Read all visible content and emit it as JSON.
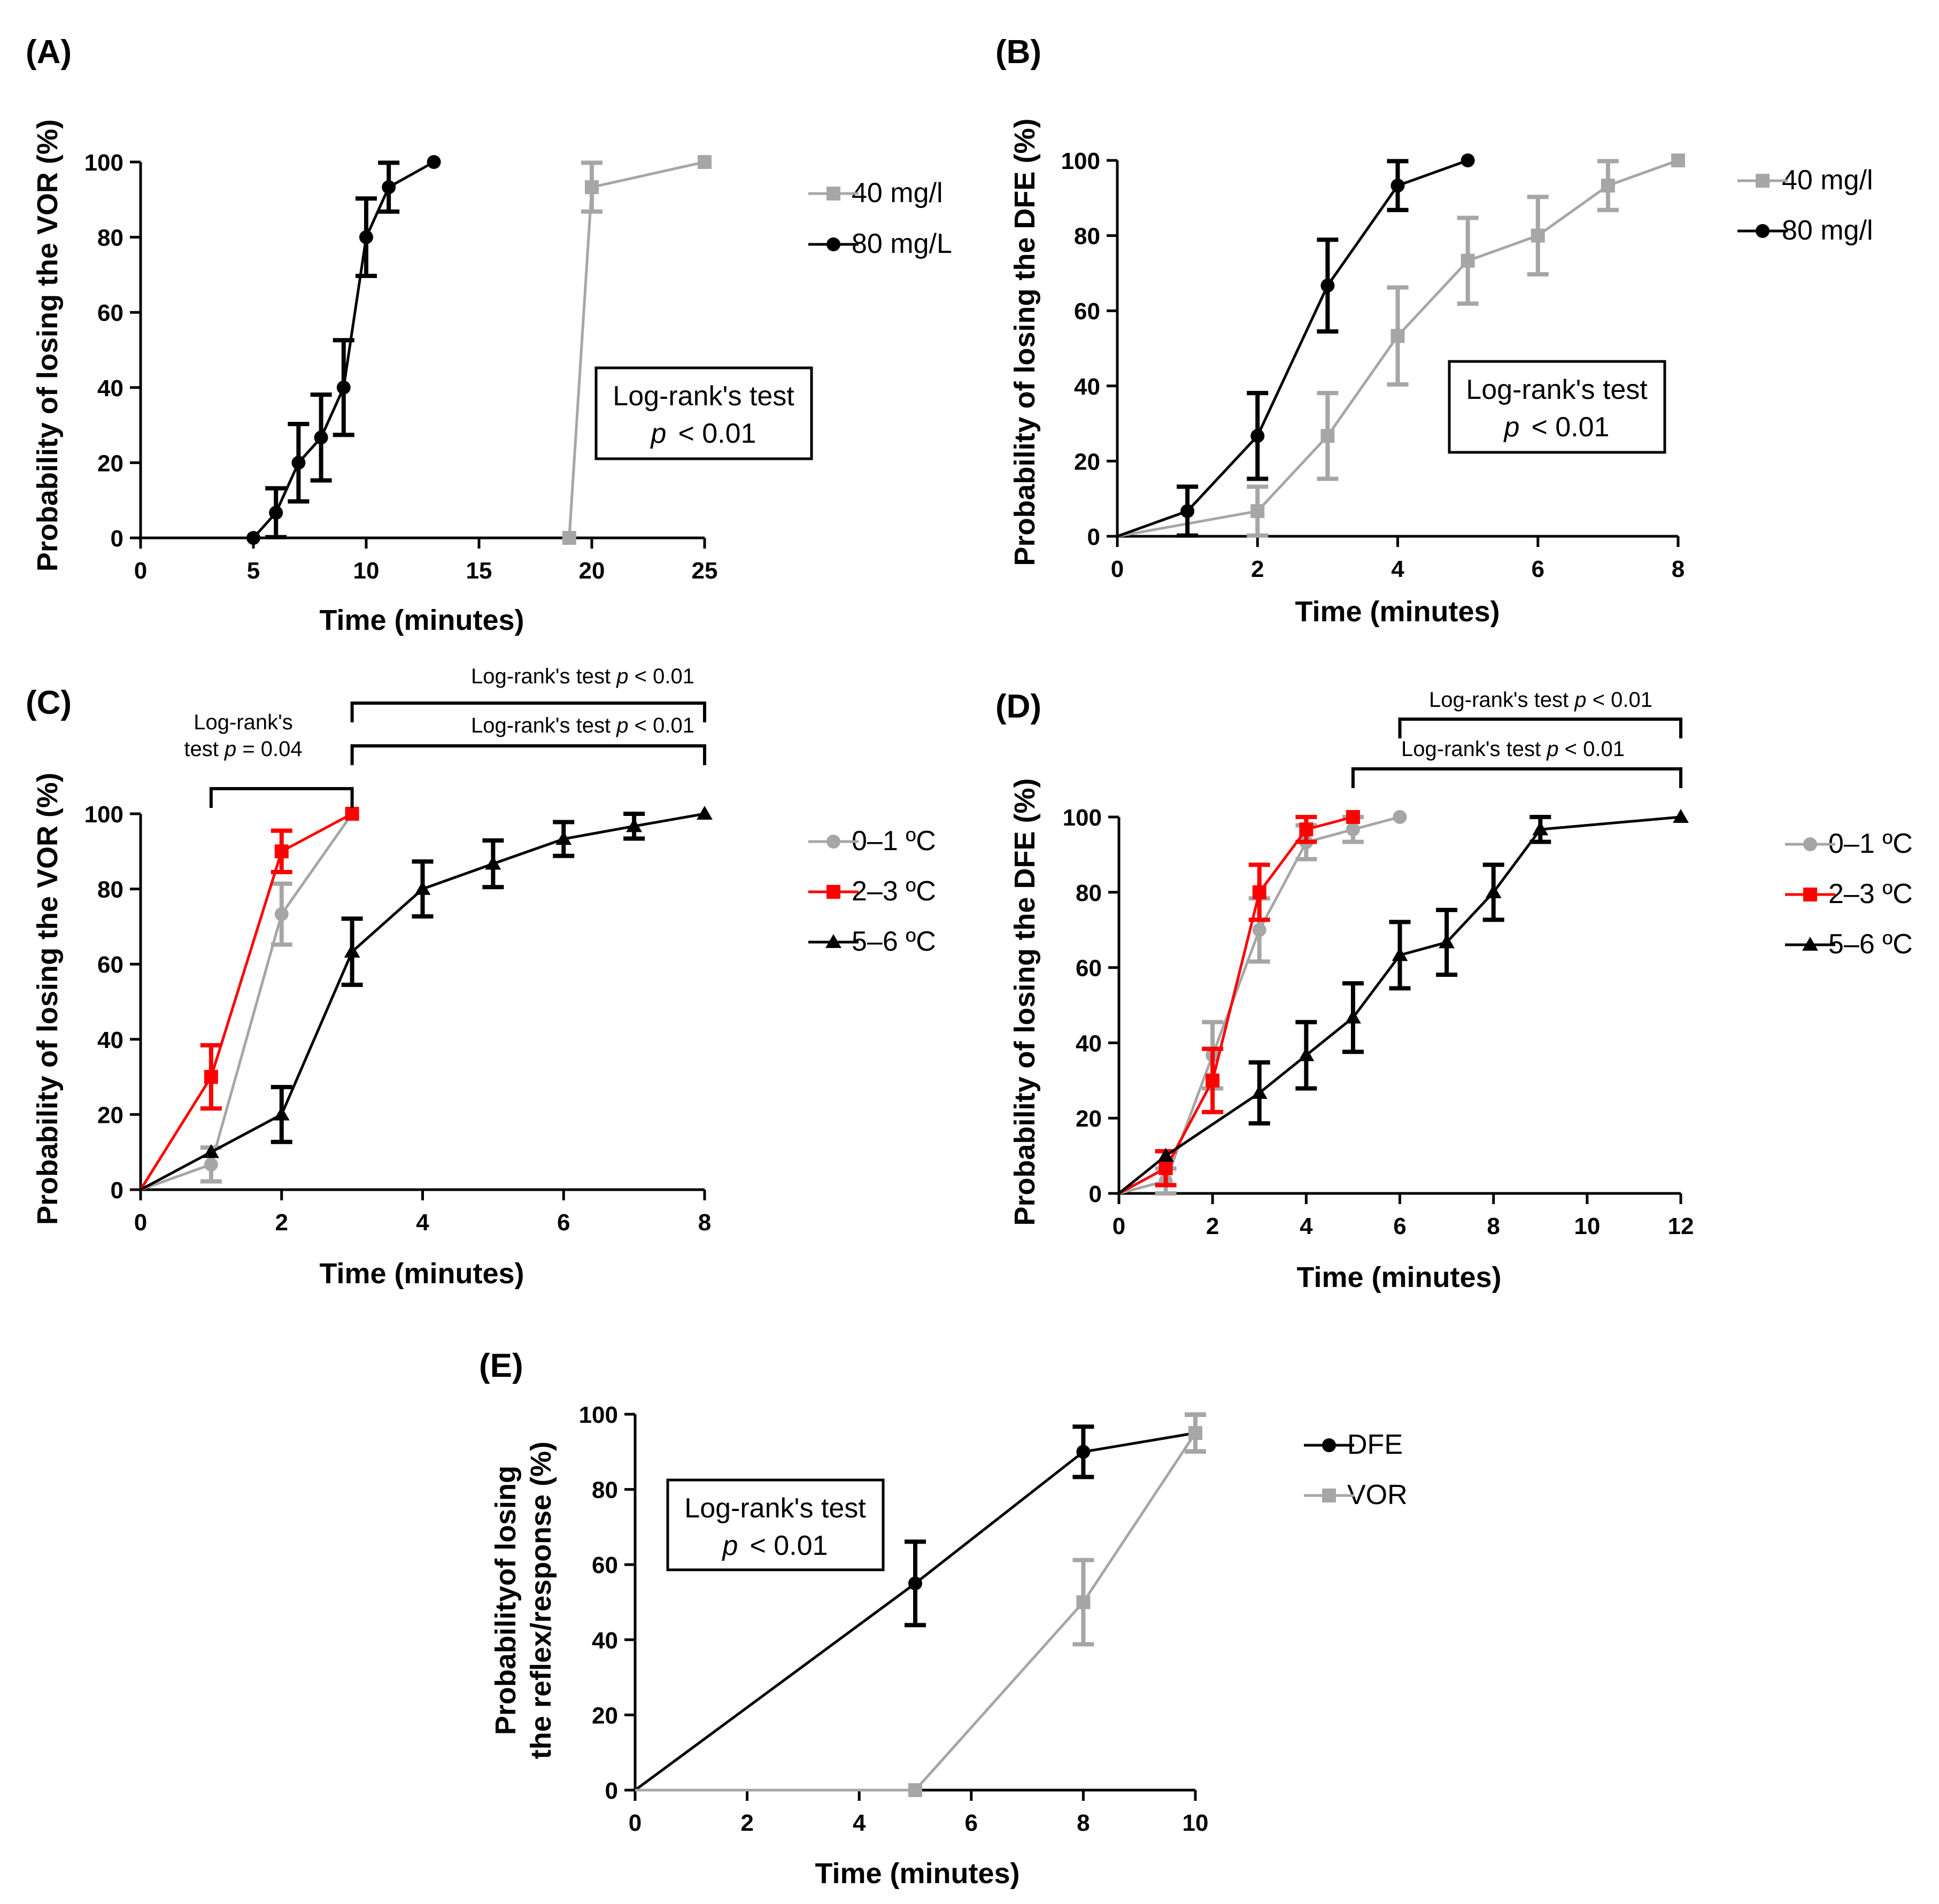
{
  "figure": {
    "panels": [
      {
        "letter": "(A)"
      },
      {
        "letter": "(B)"
      },
      {
        "letter": "(C)"
      },
      {
        "letter": "(D)"
      },
      {
        "letter": "(E)"
      }
    ]
  },
  "colors": {
    "black": "#000000",
    "gray": "#a6a6a6",
    "red": "#ff0000"
  },
  "chart_data": [
    {
      "type": "line",
      "panel": "(A)",
      "xlabel": "Time (minutes)",
      "ylabel": "Probability of losing the VOR (%)",
      "xlim": [
        0,
        25
      ],
      "ylim": [
        0,
        100
      ],
      "xticks": [
        0,
        5,
        10,
        15,
        20,
        25
      ],
      "yticks": [
        0,
        20,
        40,
        60,
        80,
        100
      ],
      "legend_position": "top-right, outside plot",
      "series": [
        {
          "name": "40 mg/l",
          "color": "#a6a6a6",
          "marker": "square",
          "x": [
            19,
            20,
            25
          ],
          "y": [
            0,
            93.3,
            100
          ],
          "err": [
            0,
            6.5,
            0
          ]
        },
        {
          "name": "80 mg/L",
          "color": "#000000",
          "marker": "circle",
          "x": [
            5,
            6,
            7,
            8,
            9,
            10,
            11,
            13
          ],
          "y": [
            0,
            6.7,
            20,
            26.7,
            40,
            80,
            93.3,
            100
          ],
          "err": [
            0,
            6.5,
            10.3,
            11.4,
            12.6,
            10.3,
            6.5,
            0
          ]
        }
      ],
      "annotation": {
        "line1": "Log-rank's test",
        "p_symbol": "p",
        "p_value": "< 0.01"
      }
    },
    {
      "type": "line",
      "panel": "(B)",
      "xlabel": "Time (minutes)",
      "ylabel": "Probability of losing the DFE (%)",
      "xlim": [
        0,
        8
      ],
      "ylim": [
        0,
        100
      ],
      "xticks": [
        0,
        2,
        4,
        6,
        8
      ],
      "yticks": [
        0,
        20,
        40,
        60,
        80,
        100
      ],
      "legend_position": "top-right, outside plot",
      "series": [
        {
          "name": "40 mg/l",
          "color": "#a6a6a6",
          "marker": "square",
          "x": [
            0,
            2,
            3,
            4,
            5,
            6,
            7,
            8
          ],
          "y": [
            0,
            6.7,
            26.7,
            53.3,
            73.3,
            80,
            93.3,
            100
          ],
          "err": [
            0,
            6.5,
            11.4,
            12.9,
            11.4,
            10.3,
            6.5,
            0
          ]
        },
        {
          "name": "80 mg/l",
          "color": "#000000",
          "marker": "circle",
          "x": [
            0,
            1,
            2,
            3,
            4,
            5
          ],
          "y": [
            0,
            6.7,
            26.7,
            66.7,
            93.3,
            100
          ],
          "err": [
            0,
            6.5,
            11.4,
            12.2,
            6.5,
            0
          ]
        }
      ],
      "annotation": {
        "line1": "Log-rank's test",
        "p_symbol": "p",
        "p_value": "< 0.01"
      }
    },
    {
      "type": "line",
      "panel": "(C)",
      "xlabel": "Time (minutes)",
      "ylabel": "Probability of losing the VOR (%)",
      "xlim": [
        0,
        8
      ],
      "ylim": [
        0,
        100
      ],
      "xticks": [
        0,
        2,
        4,
        6,
        8
      ],
      "yticks": [
        0,
        20,
        40,
        60,
        80,
        100
      ],
      "legend_position": "top-right, outside plot",
      "series": [
        {
          "name": "0–1 ºC",
          "color": "#a6a6a6",
          "marker": "circle",
          "x": [
            0,
            1,
            2,
            3
          ],
          "y": [
            0,
            6.7,
            73.3,
            100
          ],
          "err": [
            0,
            4.5,
            8.1,
            0
          ]
        },
        {
          "name": "2–3 ºC",
          "color": "#ff0000",
          "marker": "square",
          "x": [
            0,
            1,
            2,
            3
          ],
          "y": [
            0,
            30,
            90,
            100
          ],
          "err": [
            0,
            8.4,
            5.5,
            0
          ]
        },
        {
          "name": "5–6 ºC",
          "color": "#000000",
          "marker": "triangle",
          "x": [
            0,
            1,
            2,
            3,
            4,
            5,
            6,
            7,
            8
          ],
          "y": [
            0,
            10,
            20,
            63.3,
            80,
            86.7,
            93.3,
            96.7,
            100
          ],
          "err": [
            0,
            0,
            7.3,
            8.8,
            7.3,
            6.2,
            4.5,
            3.3,
            0
          ]
        }
      ],
      "brackets": [
        {
          "x1": 1,
          "x2": 3,
          "line1": "Log-rank's",
          "line2": "test ",
          "p_symbol": "p",
          "p_value": " = 0.04"
        },
        {
          "x1": 3,
          "x2": 8,
          "label": "Log-rank's test ",
          "p_symbol": "p",
          "p_value": " < 0.01"
        },
        {
          "x1": 3,
          "x2": 8,
          "label": "Log-rank's test ",
          "p_symbol": "p",
          "p_value": " < 0.01"
        }
      ]
    },
    {
      "type": "line",
      "panel": "(D)",
      "xlabel": "Time (minutes)",
      "ylabel": "Probability of losing the DFE (%)",
      "xlim": [
        0,
        12
      ],
      "ylim": [
        0,
        100
      ],
      "xticks": [
        0,
        2,
        4,
        6,
        8,
        10,
        12
      ],
      "yticks": [
        0,
        20,
        40,
        60,
        80,
        100
      ],
      "legend_position": "top-right, outside plot",
      "series": [
        {
          "name": "0–1 ºC",
          "color": "#a6a6a6",
          "marker": "circle",
          "x": [
            0,
            1,
            2,
            3,
            4,
            5,
            6
          ],
          "y": [
            0,
            3.3,
            36.7,
            70,
            93.3,
            96.7,
            100
          ],
          "err": [
            0,
            3.3,
            8.8,
            8.4,
            4.5,
            3.3,
            0
          ]
        },
        {
          "name": "2–3 ºC",
          "color": "#ff0000",
          "marker": "square",
          "x": [
            0,
            1,
            2,
            3,
            4,
            5
          ],
          "y": [
            0,
            6.7,
            30,
            80,
            96.7,
            100
          ],
          "err": [
            0,
            4.5,
            8.4,
            7.3,
            3.3,
            0
          ]
        },
        {
          "name": "5–6 ºC",
          "color": "#000000",
          "marker": "triangle",
          "x": [
            0,
            1,
            3,
            4,
            5,
            6,
            7,
            8,
            9,
            12
          ],
          "y": [
            0,
            10,
            26.7,
            36.7,
            46.7,
            63.3,
            66.7,
            80,
            96.7,
            100
          ],
          "err": [
            0,
            0,
            8.1,
            8.8,
            9.1,
            8.8,
            8.6,
            7.3,
            3.3,
            0
          ]
        }
      ],
      "brackets": [
        {
          "x1": 6,
          "x2": 12,
          "label": "Log-rank's test ",
          "p_symbol": "p",
          "p_value": " < 0.01"
        },
        {
          "x1": 5,
          "x2": 12,
          "label": "Log-rank's test ",
          "p_symbol": "p",
          "p_value": " < 0.01"
        }
      ]
    },
    {
      "type": "line",
      "panel": "(E)",
      "xlabel": "Time (minutes)",
      "ylabel_line1": "Probabilityof losing",
      "ylabel_line2": "the reflex/response (%)",
      "xlim": [
        0,
        10
      ],
      "ylim": [
        0,
        100
      ],
      "xticks": [
        0,
        2,
        4,
        6,
        8,
        10
      ],
      "yticks": [
        0,
        20,
        40,
        60,
        80,
        100
      ],
      "legend_position": "top-right, outside plot",
      "series": [
        {
          "name": "DFE",
          "color": "#000000",
          "marker": "circle",
          "x": [
            0,
            5,
            8,
            10
          ],
          "y": [
            0,
            55,
            90,
            95
          ],
          "err": [
            0,
            11.1,
            6.7,
            4.9
          ]
        },
        {
          "name": "VOR",
          "color": "#a6a6a6",
          "marker": "square",
          "x": [
            0,
            5,
            8,
            10
          ],
          "y": [
            0,
            0,
            50,
            95
          ],
          "err": [
            0,
            0,
            11.2,
            4.9
          ]
        }
      ],
      "annotation": {
        "line1": "Log-rank's test",
        "p_symbol": "p",
        "p_value": "< 0.01"
      }
    }
  ]
}
